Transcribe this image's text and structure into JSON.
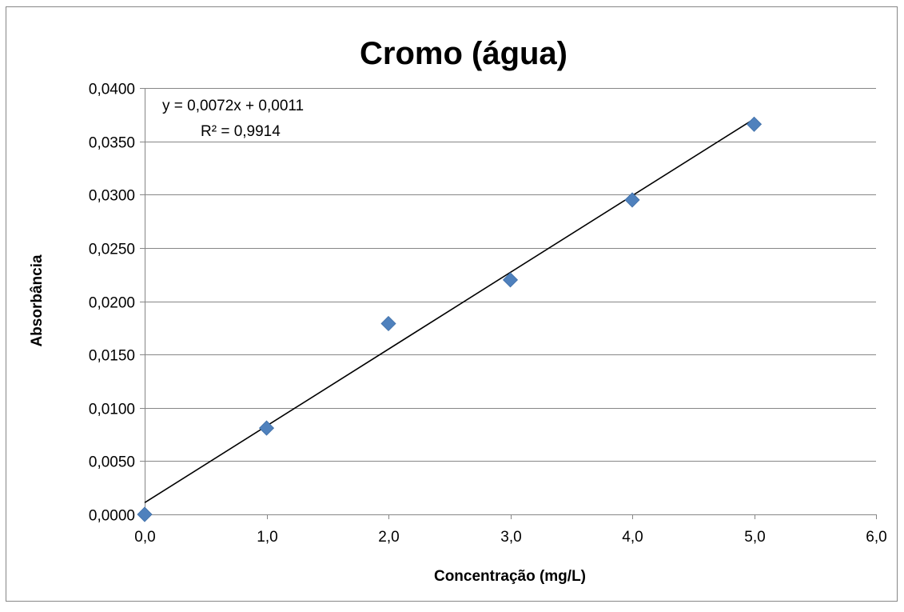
{
  "chart_data": {
    "type": "scatter",
    "title": "Cromo (água)",
    "xlabel": "Concentração (mg/L)",
    "ylabel": "Absorbância",
    "xlim": [
      0,
      6
    ],
    "ylim": [
      0,
      0.04
    ],
    "x_ticks": [
      0,
      1,
      2,
      3,
      4,
      5,
      6
    ],
    "x_tick_labels": [
      "0,0",
      "1,0",
      "2,0",
      "3,0",
      "4,0",
      "5,0",
      "6,0"
    ],
    "y_ticks": [
      0,
      0.005,
      0.01,
      0.015,
      0.02,
      0.025,
      0.03,
      0.035,
      0.04
    ],
    "y_tick_labels": [
      "0,0000",
      "0,0050",
      "0,0100",
      "0,0150",
      "0,0200",
      "0,0250",
      "0,0300",
      "0,0350",
      "0,0400"
    ],
    "grid": "horizontal",
    "legend": "none",
    "series": [
      {
        "x": [
          0,
          1,
          2,
          3,
          4,
          5
        ],
        "y": [
          0.0,
          0.0081,
          0.0179,
          0.022,
          0.0295,
          0.0366
        ],
        "color": "#4f81bd",
        "marker": "diamond"
      }
    ],
    "trendline": {
      "type": "linear",
      "slope": 0.0072,
      "intercept": 0.0011,
      "x_range": [
        0,
        5
      ],
      "color": "#000000",
      "equation_label": "y = 0,0072x + 0,0011",
      "r2_label": "R² = 0,9914"
    }
  }
}
